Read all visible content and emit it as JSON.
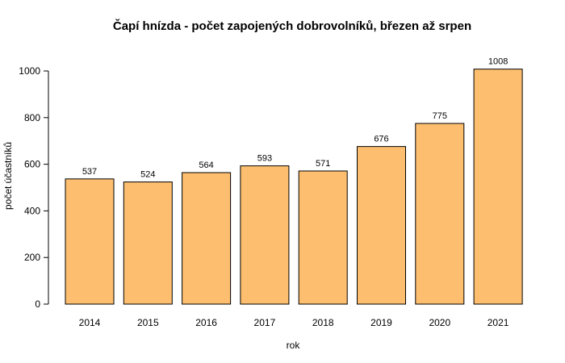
{
  "chart_data": {
    "type": "bar",
    "title": "Čapí hnízda - počet zapojených dobrovolníků, březen až srpen",
    "xlabel": "rok",
    "ylabel": "počet účastníků",
    "categories": [
      "2014",
      "2015",
      "2016",
      "2017",
      "2018",
      "2019",
      "2020",
      "2021"
    ],
    "values": [
      537,
      524,
      564,
      593,
      571,
      676,
      775,
      1008
    ],
    "data_labels": [
      "537",
      "524",
      "564",
      "593",
      "571",
      "676",
      "775",
      "1008"
    ],
    "yticks": [
      0,
      200,
      400,
      600,
      800,
      1000
    ],
    "ytick_labels": [
      "0",
      "200",
      "400",
      "600",
      "800",
      "1000"
    ],
    "ylim": [
      0,
      1000
    ],
    "grid": false,
    "legend": "none",
    "bar_color": "#fdbf6f"
  }
}
